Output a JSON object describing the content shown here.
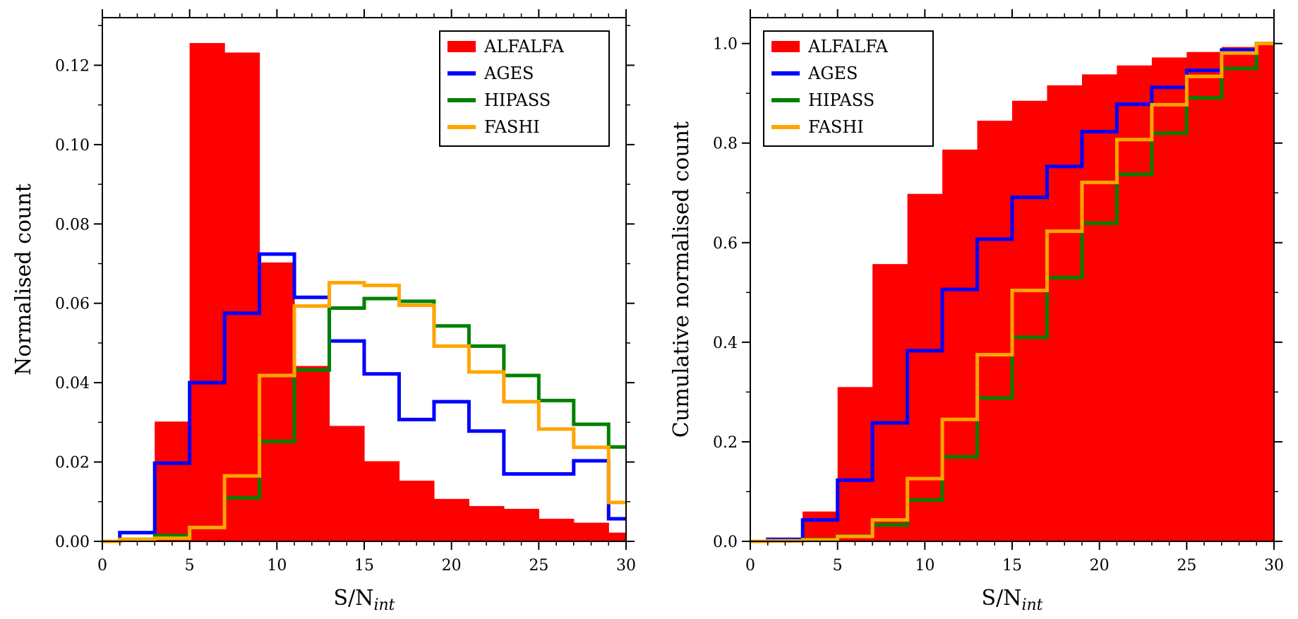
{
  "chart_data": [
    {
      "type": "histogram-step",
      "title": "",
      "xlabel_main": "S/N",
      "xlabel_sub": "int",
      "ylabel": "Normalised count",
      "xlim": [
        0,
        30
      ],
      "ylim": [
        0,
        0.132
      ],
      "x_ticks": [
        0,
        5,
        10,
        15,
        20,
        25,
        30
      ],
      "x_tick_labels": [
        "0",
        "5",
        "10",
        "15",
        "20",
        "25",
        "30"
      ],
      "y_ticks": [
        0,
        0.02,
        0.04,
        0.06,
        0.08,
        0.1,
        0.12
      ],
      "y_tick_labels": [
        "0.00",
        "0.02",
        "0.04",
        "0.06",
        "0.08",
        "0.10",
        "0.12"
      ],
      "bin_edges": [
        0,
        1,
        3,
        5,
        7,
        9,
        11,
        13,
        15,
        17,
        19,
        21,
        23,
        25,
        27,
        29,
        30
      ],
      "legend_position": "top-right",
      "series": [
        {
          "name": "ALFALFA",
          "style": "filled",
          "color": "#ff0000",
          "values": [
            0,
            0,
            0.0302,
            0.1256,
            0.1232,
            0.0703,
            0.0442,
            0.0291,
            0.0202,
            0.0153,
            0.0107,
            0.0089,
            0.0082,
            0.0057,
            0.0047,
            0.0022
          ]
        },
        {
          "name": "AGES",
          "style": "step",
          "color": "#0000ff",
          "values": [
            0,
            0.0022,
            0.0197,
            0.04,
            0.0575,
            0.0724,
            0.0615,
            0.0505,
            0.0422,
            0.0307,
            0.0352,
            0.0278,
            0.017,
            0.017,
            0.0203,
            0.0057
          ]
        },
        {
          "name": "HIPASS",
          "style": "step",
          "color": "#008000",
          "values": [
            0,
            0.0005,
            0.0015,
            0.0035,
            0.011,
            0.0252,
            0.0432,
            0.0588,
            0.0612,
            0.0605,
            0.0543,
            0.0492,
            0.0418,
            0.0355,
            0.0295,
            0.0238
          ]
        },
        {
          "name": "FASHI",
          "style": "step",
          "color": "#ffa500",
          "values": [
            0,
            0.0005,
            0.0008,
            0.0035,
            0.0165,
            0.0418,
            0.0593,
            0.0652,
            0.0645,
            0.0595,
            0.0492,
            0.0427,
            0.0352,
            0.0283,
            0.0237,
            0.0098
          ]
        }
      ]
    },
    {
      "type": "histogram-step-cumulative",
      "title": "",
      "xlabel_main": "S/N",
      "xlabel_sub": "int",
      "ylabel": "Cumulative normalised count",
      "xlim": [
        0,
        30
      ],
      "ylim": [
        0,
        1.052
      ],
      "x_ticks": [
        0,
        5,
        10,
        15,
        20,
        25,
        30
      ],
      "x_tick_labels": [
        "0",
        "5",
        "10",
        "15",
        "20",
        "25",
        "30"
      ],
      "y_ticks": [
        0,
        0.2,
        0.4,
        0.6,
        0.8,
        1.0
      ],
      "y_tick_labels": [
        "0.0",
        "0.2",
        "0.4",
        "0.6",
        "0.8",
        "1.0"
      ],
      "bin_edges": [
        0,
        1,
        3,
        5,
        7,
        9,
        11,
        13,
        15,
        17,
        19,
        21,
        23,
        25,
        27,
        29,
        30
      ],
      "legend_position": "top-left",
      "series": [
        {
          "name": "ALFALFA",
          "style": "filled",
          "color": "#ff0000",
          "values": [
            0,
            0,
            0.06,
            0.31,
            0.557,
            0.698,
            0.787,
            0.845,
            0.885,
            0.916,
            0.938,
            0.956,
            0.972,
            0.983,
            0.993,
            1.0
          ]
        },
        {
          "name": "AGES",
          "style": "step",
          "color": "#0000ff",
          "values": [
            0,
            0.004,
            0.043,
            0.123,
            0.238,
            0.383,
            0.506,
            0.607,
            0.691,
            0.753,
            0.823,
            0.878,
            0.912,
            0.946,
            0.987,
            1.0
          ]
        },
        {
          "name": "HIPASS",
          "style": "step",
          "color": "#008000",
          "values": [
            0,
            0.001,
            0.004,
            0.011,
            0.033,
            0.083,
            0.17,
            0.288,
            0.41,
            0.53,
            0.639,
            0.737,
            0.82,
            0.891,
            0.95,
            1.0
          ]
        },
        {
          "name": "FASHI",
          "style": "step",
          "color": "#ffa500",
          "values": [
            0,
            0.001,
            0.003,
            0.01,
            0.043,
            0.126,
            0.245,
            0.375,
            0.504,
            0.623,
            0.721,
            0.807,
            0.877,
            0.934,
            0.981,
            1.0
          ]
        }
      ]
    }
  ]
}
